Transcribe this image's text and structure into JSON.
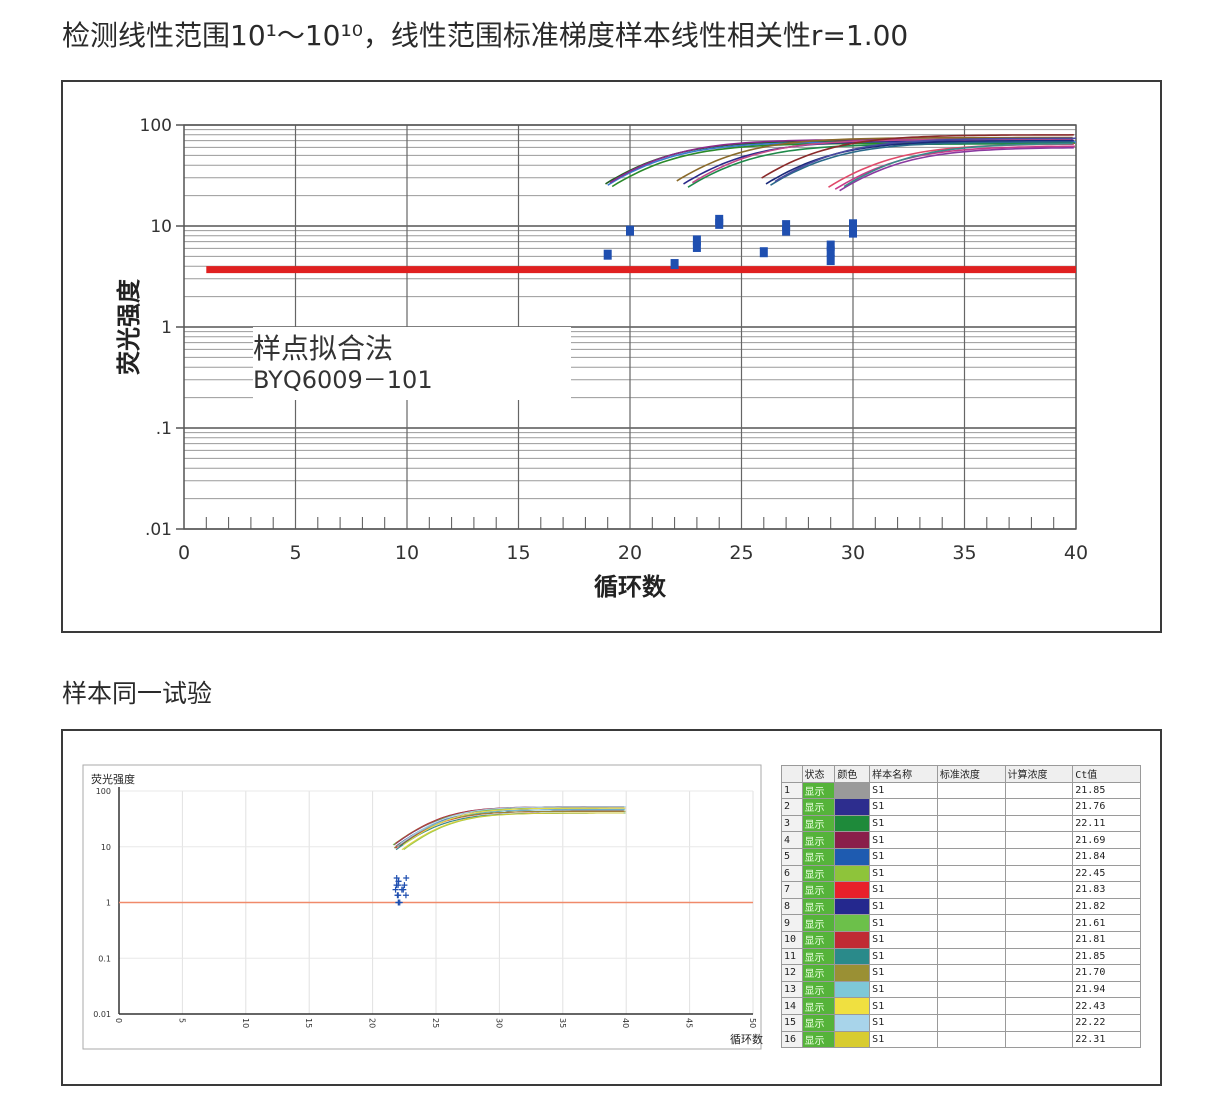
{
  "heading1": "检测线性范围10¹～10¹⁰，线性范围标准梯度样本线性相关性r=1.00",
  "heading2": "样本同一试验",
  "chart1": {
    "ylabel": "荧光强度",
    "xlabel": "循环数",
    "annotation_line1": "样点拟合法",
    "annotation_line2": "BYQ6009－101",
    "y_tick_labels": [
      "100",
      "10",
      "1",
      ".1",
      ".01"
    ],
    "x_tick_labels": [
      "0",
      "5",
      "10",
      "15",
      "20",
      "25",
      "30",
      "35",
      "40"
    ]
  },
  "chart2": {
    "ylabel": "荧光强度",
    "xlabel": "循环数",
    "y_tick_labels": [
      "100",
      "10",
      "1",
      "0.1",
      "0.01"
    ],
    "x_tick_labels": [
      "0",
      "5",
      "10",
      "15",
      "20",
      "25",
      "30",
      "35",
      "40",
      "45",
      "50"
    ]
  },
  "table": {
    "headers": [
      "",
      "状态",
      "颜色",
      "样本名称",
      "标准浓度",
      "计算浓度",
      "Ct值"
    ],
    "rows": [
      {
        "idx": "1",
        "status": "显示",
        "color": "#9a9a9a",
        "name": "S1",
        "ct": "21.85"
      },
      {
        "idx": "2",
        "status": "显示",
        "color": "#2d2d8e",
        "name": "S1",
        "ct": "21.76"
      },
      {
        "idx": "3",
        "status": "显示",
        "color": "#1e8a3a",
        "name": "S1",
        "ct": "22.11"
      },
      {
        "idx": "4",
        "status": "显示",
        "color": "#8a1f4a",
        "name": "S1",
        "ct": "21.69"
      },
      {
        "idx": "5",
        "status": "显示",
        "color": "#1e5bb0",
        "name": "S1",
        "ct": "21.84"
      },
      {
        "idx": "6",
        "status": "显示",
        "color": "#8ec43a",
        "name": "S1",
        "ct": "22.45"
      },
      {
        "idx": "7",
        "status": "显示",
        "color": "#e8202a",
        "name": "S1",
        "ct": "21.83"
      },
      {
        "idx": "8",
        "status": "显示",
        "color": "#24288e",
        "name": "S1",
        "ct": "21.82"
      },
      {
        "idx": "9",
        "status": "显示",
        "color": "#6cc04a",
        "name": "S1",
        "ct": "21.61"
      },
      {
        "idx": "10",
        "status": "显示",
        "color": "#c02a34",
        "name": "S1",
        "ct": "21.81"
      },
      {
        "idx": "11",
        "status": "显示",
        "color": "#2a8a8a",
        "name": "S1",
        "ct": "21.85"
      },
      {
        "idx": "12",
        "status": "显示",
        "color": "#9a9034",
        "name": "S1",
        "ct": "21.70"
      },
      {
        "idx": "13",
        "status": "显示",
        "color": "#7ec8d8",
        "name": "S1",
        "ct": "21.94"
      },
      {
        "idx": "14",
        "status": "显示",
        "color": "#f0e040",
        "name": "S1",
        "ct": "22.43"
      },
      {
        "idx": "15",
        "status": "显示",
        "color": "#a8d4ea",
        "name": "S1",
        "ct": "22.22"
      },
      {
        "idx": "16",
        "status": "显示",
        "color": "#d8cc30",
        "name": "S1",
        "ct": "22.31"
      }
    ]
  },
  "chart_data": [
    {
      "type": "line",
      "xlabel": "循环数",
      "ylabel": "荧光强度",
      "xlim": [
        0,
        40
      ],
      "ylim": [
        0.01,
        100
      ],
      "yscale": "log",
      "grid": true,
      "threshold": 3.7,
      "threshold_color": "#e02020",
      "series": [
        {
          "ct": 19.5,
          "plateau": 70,
          "color": "#1f5f1f"
        },
        {
          "ct": 19.6,
          "plateau": 68,
          "color": "#3a7ad0"
        },
        {
          "ct": 19.7,
          "plateau": 72,
          "color": "#8a2a8a"
        },
        {
          "ct": 19.8,
          "plateau": 66,
          "color": "#2a8a2a"
        },
        {
          "ct": 22.7,
          "plateau": 75,
          "color": "#8a6a2a"
        },
        {
          "ct": 23.0,
          "plateau": 70,
          "color": "#2a2a8a"
        },
        {
          "ct": 23.2,
          "plateau": 65,
          "color": "#1f8a4a"
        },
        {
          "ct": 23.4,
          "plateau": 72,
          "color": "#c04a8a"
        },
        {
          "ct": 26.5,
          "plateau": 80,
          "color": "#8a2a2a"
        },
        {
          "ct": 26.7,
          "plateau": 70,
          "color": "#1a2a7a"
        },
        {
          "ct": 26.9,
          "plateau": 68,
          "color": "#2a6a8a"
        },
        {
          "ct": 27.1,
          "plateau": 74,
          "color": "#4a4aa0"
        },
        {
          "ct": 29.5,
          "plateau": 65,
          "color": "#e04a6a"
        },
        {
          "ct": 29.8,
          "plateau": 62,
          "color": "#c83a8a"
        },
        {
          "ct": 30.0,
          "plateau": 60,
          "color": "#8a3aa0"
        },
        {
          "ct": 30.2,
          "plateau": 66,
          "color": "#3a8a8a"
        }
      ],
      "markers": [
        {
          "x": 19,
          "y": 5.2
        },
        {
          "x": 20,
          "y": 9.0
        },
        {
          "x": 22,
          "y": 4.2
        },
        {
          "x": 23,
          "y": 6.2
        },
        {
          "x": 23,
          "y": 7.2
        },
        {
          "x": 24,
          "y": 10.5
        },
        {
          "x": 24,
          "y": 11.5
        },
        {
          "x": 26,
          "y": 5.5
        },
        {
          "x": 27,
          "y": 9.0
        },
        {
          "x": 27,
          "y": 10.2
        },
        {
          "x": 29,
          "y": 4.6
        },
        {
          "x": 29,
          "y": 5.6
        },
        {
          "x": 29,
          "y": 6.4
        },
        {
          "x": 30,
          "y": 8.6
        },
        {
          "x": 30,
          "y": 10.4
        }
      ]
    },
    {
      "type": "line",
      "xlabel": "循环数",
      "ylabel": "荧光强度",
      "xlim": [
        0,
        50
      ],
      "ylim": [
        0.01,
        100
      ],
      "yscale": "log",
      "grid": true,
      "threshold": 1,
      "threshold_color": "#f08a6a",
      "series_note": "16 replicate amplification curves, Ct values listed in table"
    }
  ]
}
